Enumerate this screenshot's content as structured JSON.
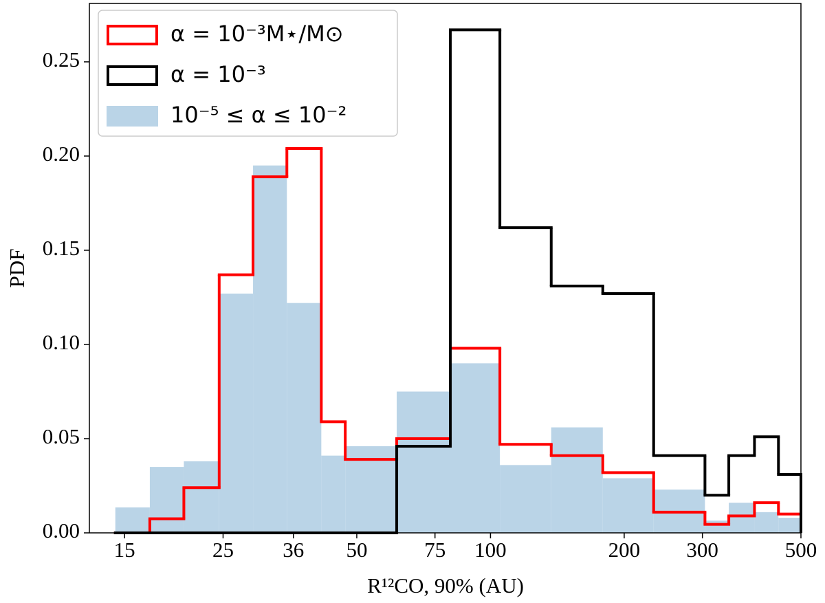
{
  "chart_data": {
    "type": "histogram",
    "x_label": "R¹²CO, 90% (AU)",
    "y_label": "PDF",
    "xscale": "log",
    "xlim": [
      12.5,
      500
    ],
    "xticks": [
      15,
      25,
      36,
      50,
      75,
      100,
      200,
      300,
      500
    ],
    "ylim": [
      0,
      0.281
    ],
    "yticks": [
      {
        "value": 0,
        "label": "0.00"
      },
      {
        "value": 0.05,
        "label": "0.05"
      },
      {
        "value": 0.1,
        "label": "0.10"
      },
      {
        "value": 0.15,
        "label": "0.15"
      },
      {
        "value": 0.2,
        "label": "0.20"
      },
      {
        "value": 0.25,
        "label": "0.25"
      }
    ],
    "legend": "upper left",
    "bins": [
      14.3,
      17.1,
      20.4,
      24.5,
      29.2,
      34.8,
      41.6,
      47.1,
      61.5,
      81.2,
      105,
      137,
      179,
      233,
      304,
      344,
      393,
      445,
      500
    ],
    "series": [
      {
        "name": "α = 10⁻³M⋆/M⊙",
        "color": "#ff0000",
        "style": "step",
        "values": [
          0,
          0.0075,
          0.024,
          0.137,
          0.189,
          0.204,
          0.059,
          0.039,
          0.05,
          0.098,
          0.047,
          0.041,
          0.032,
          0.011,
          0.0045,
          0.009,
          0.016,
          0.01
        ]
      },
      {
        "name": "α = 10⁻³",
        "color": "#000000",
        "style": "step",
        "values": [
          0,
          0,
          0,
          0,
          0,
          0,
          0,
          0,
          0.046,
          0.267,
          0.162,
          0.131,
          0.127,
          0.041,
          0.02,
          0.041,
          0.051,
          0.031
        ]
      },
      {
        "name": "10⁻⁵ ≤ α ≤ 10⁻²",
        "color": "#bad4e7",
        "style": "filled",
        "values": [
          0.0135,
          0.035,
          0.038,
          0.127,
          0.195,
          0.122,
          0.041,
          0.046,
          0.075,
          0.09,
          0.036,
          0.056,
          0.029,
          0.023,
          0.0065,
          0.016,
          0.011,
          0.008
        ]
      }
    ]
  }
}
